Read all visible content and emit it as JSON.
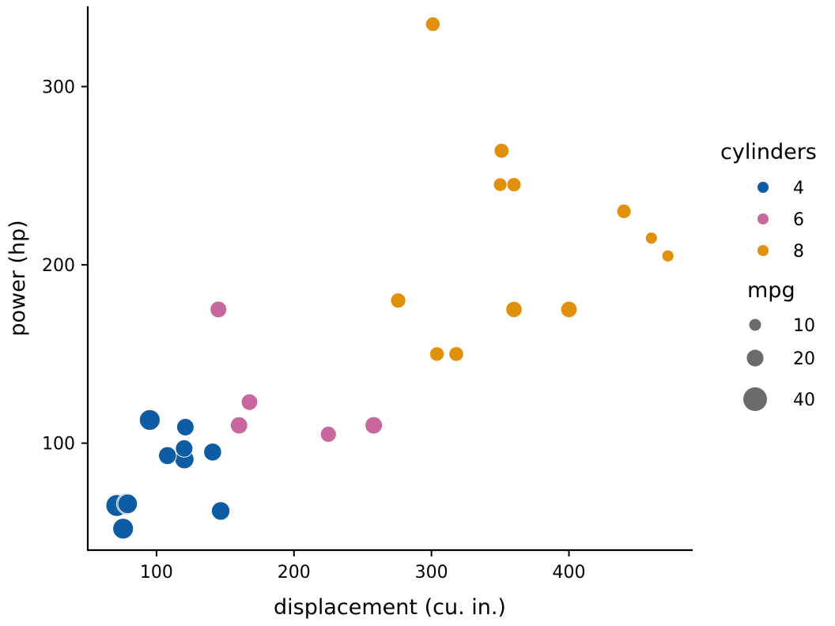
{
  "chart_data": {
    "type": "scatter",
    "xlabel": "displacement (cu. in.)",
    "ylabel": "power (hp)",
    "xlim": [
      50,
      490
    ],
    "ylim": [
      40,
      345
    ],
    "x_ticks": [
      100,
      200,
      300,
      400
    ],
    "y_ticks": [
      100,
      200,
      300
    ],
    "grid": false,
    "color_legend": {
      "title": "cylinders",
      "entries": [
        {
          "label": "4",
          "color": "#0E5CA4"
        },
        {
          "label": "6",
          "color": "#C8679D"
        },
        {
          "label": "8",
          "color": "#E0900B"
        }
      ]
    },
    "size_legend": {
      "title": "mpg",
      "entries": [
        {
          "label": "10",
          "value": 10
        },
        {
          "label": "20",
          "value": 20
        },
        {
          "label": "40",
          "value": 40
        }
      ]
    },
    "series": [
      {
        "cylinders": "4",
        "color": "#0E5CA4",
        "points": [
          {
            "x": 108,
            "y": 93,
            "mpg": 22.8
          },
          {
            "x": 146.7,
            "y": 62,
            "mpg": 24.4
          },
          {
            "x": 140.8,
            "y": 95,
            "mpg": 22.8
          },
          {
            "x": 78.7,
            "y": 66,
            "mpg": 32.4
          },
          {
            "x": 75.7,
            "y": 52,
            "mpg": 30.4
          },
          {
            "x": 71.1,
            "y": 65,
            "mpg": 33.9
          },
          {
            "x": 120.1,
            "y": 97,
            "mpg": 21.5
          },
          {
            "x": 79,
            "y": 66,
            "mpg": 27.3
          },
          {
            "x": 120.3,
            "y": 91,
            "mpg": 26
          },
          {
            "x": 95.1,
            "y": 113,
            "mpg": 30.4
          },
          {
            "x": 121,
            "y": 109,
            "mpg": 21.4
          }
        ]
      },
      {
        "cylinders": "6",
        "color": "#C8679D",
        "points": [
          {
            "x": 160,
            "y": 110,
            "mpg": 21
          },
          {
            "x": 258,
            "y": 110,
            "mpg": 21.4
          },
          {
            "x": 225,
            "y": 105,
            "mpg": 18.1
          },
          {
            "x": 167.6,
            "y": 123,
            "mpg": 19.2
          },
          {
            "x": 145,
            "y": 175,
            "mpg": 19.7
          }
        ]
      },
      {
        "cylinders": "8",
        "color": "#E0900B",
        "points": [
          {
            "x": 360,
            "y": 175,
            "mpg": 18.7
          },
          {
            "x": 360,
            "y": 245,
            "mpg": 14.3
          },
          {
            "x": 275.8,
            "y": 180,
            "mpg": 16.4
          },
          {
            "x": 472,
            "y": 205,
            "mpg": 10.4
          },
          {
            "x": 460,
            "y": 215,
            "mpg": 10.4
          },
          {
            "x": 440,
            "y": 230,
            "mpg": 14.7
          },
          {
            "x": 318,
            "y": 150,
            "mpg": 15.5
          },
          {
            "x": 304,
            "y": 150,
            "mpg": 15.2
          },
          {
            "x": 350,
            "y": 245,
            "mpg": 13.3
          },
          {
            "x": 400,
            "y": 175,
            "mpg": 19.2
          },
          {
            "x": 351,
            "y": 264,
            "mpg": 15.8
          },
          {
            "x": 301,
            "y": 335,
            "mpg": 15
          }
        ]
      }
    ]
  }
}
